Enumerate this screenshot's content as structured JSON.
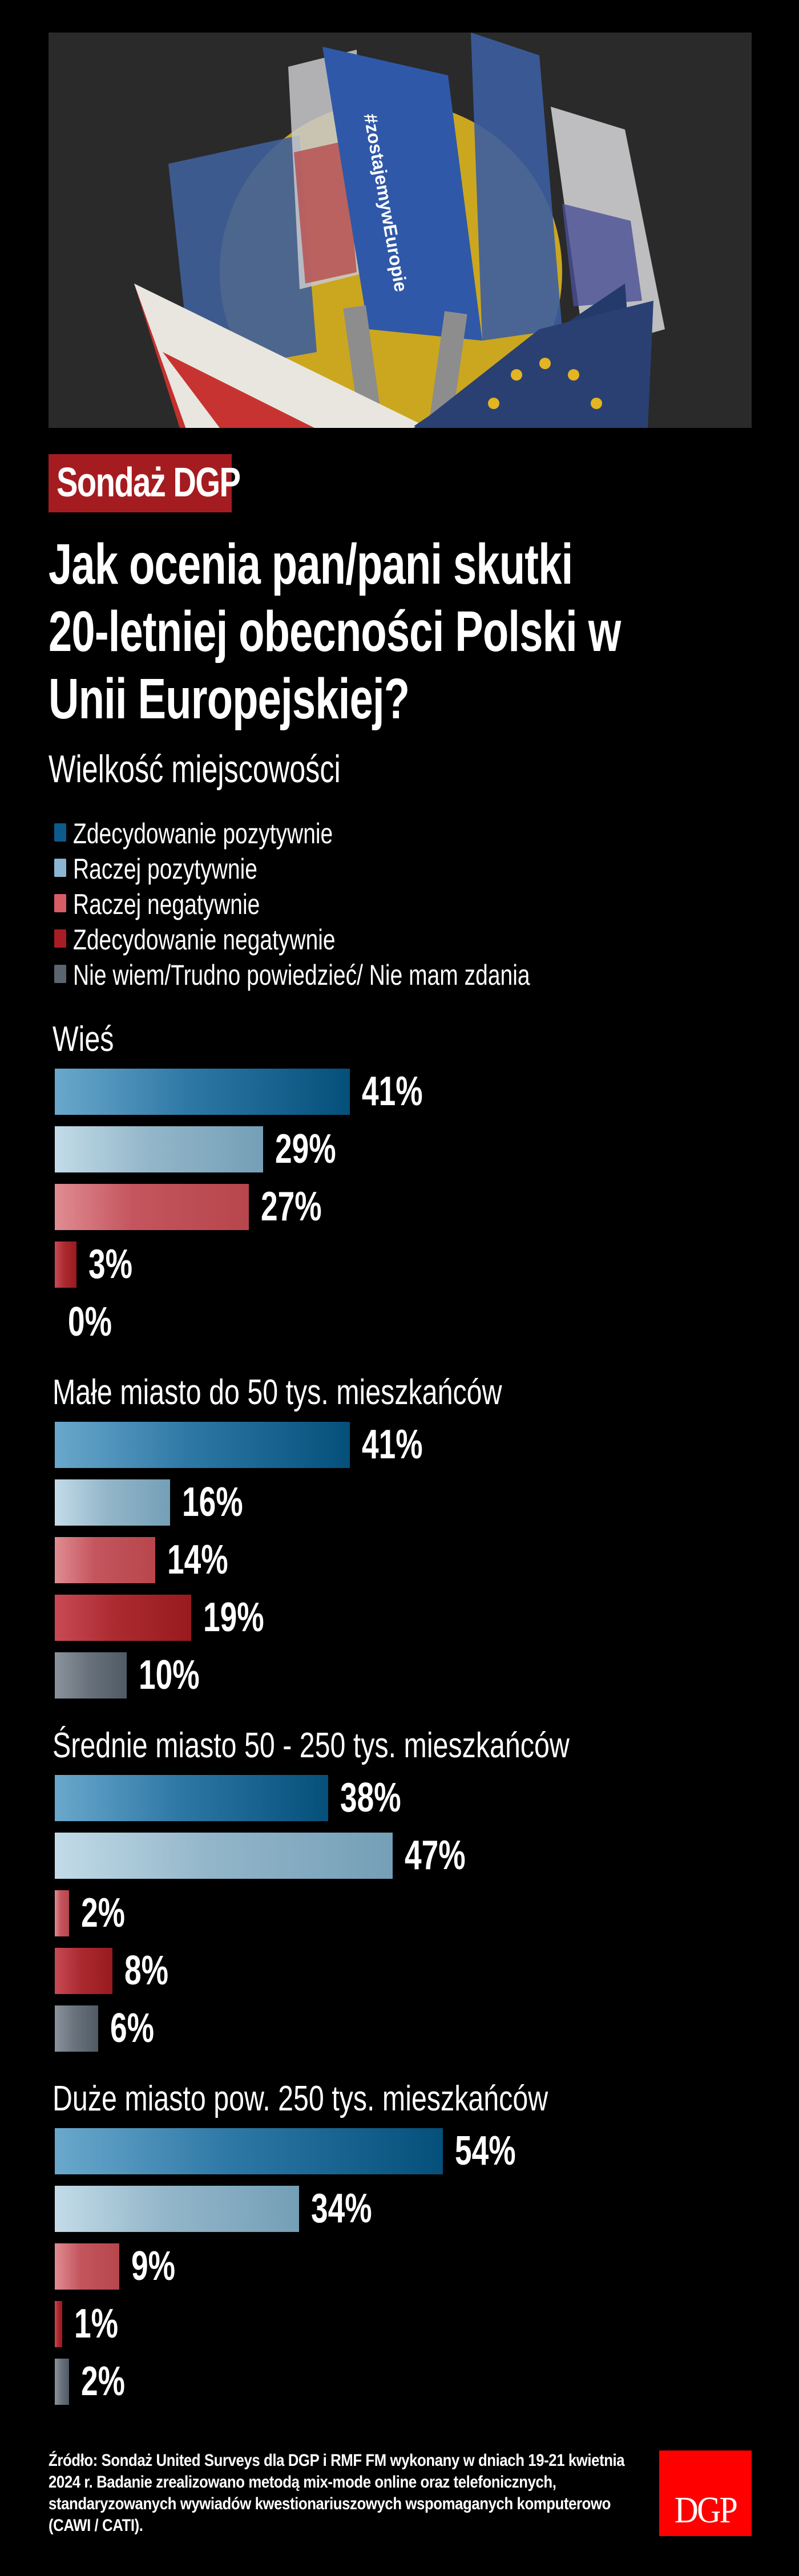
{
  "hero_image": {
    "description": "Collage: Polish and EU flags tied together, hands holding a #zostajemywEuropie sign, yellow circle background",
    "sign_text": "#zostajemywEuropie",
    "background_color": "#2a2a2a"
  },
  "badge": {
    "label": "Sondaż DGP",
    "color": "#a51c20"
  },
  "title": {
    "lines": [
      "Jak ocenia pan/pani skutki",
      "20-letniej obecności Polski w",
      "Unii Europejskiej?"
    ]
  },
  "subtitle": "Wielkość miejscowości",
  "legend": [
    {
      "label": "Zdecydowanie pozytywnie",
      "color": "#0d5a8c"
    },
    {
      "label": "Raczej pozytywnie",
      "color": "#8bb5d2"
    },
    {
      "label": "Raczej negatywnie",
      "color": "#d65c66"
    },
    {
      "label": "Zdecydowanie negatywnie",
      "color": "#a81c24"
    },
    {
      "label": "Nie wiem/Trudno powiedzieć/ Nie mam zdania",
      "color": "#5b6570"
    }
  ],
  "groups": [
    {
      "title": "Wieś",
      "labels": [
        "41%",
        "29%",
        "27%",
        "3%",
        "0%"
      ]
    },
    {
      "title": "Małe miasto do 50 tys. mieszkańców",
      "labels": [
        "41%",
        "16%",
        "14%",
        "19%",
        "10%"
      ]
    },
    {
      "title": "Średnie miasto 50 - 250 tys. mieszkańców",
      "labels": [
        "38%",
        "47%",
        "2%",
        "8%",
        "6%"
      ]
    },
    {
      "title": "Duże miasto pow. 250 tys. mieszkańców",
      "labels": [
        "54%",
        "34%",
        "9%",
        "1%",
        "2%"
      ]
    }
  ],
  "footer": {
    "source": "Źródło: Sondaż United Surveys dla DGP i RMF FM wykonany w dniach 19-21 kwietnia 2024 r. Badanie zrealizowano metodą mix-mode online oraz telefonicznych, standaryzowanych wywiadów kwestionariuszowych wspomaganych komputerowo (CAWI / CATI).",
    "source_lines": [
      "Źródło: Sondaż United Surveys dla DGP i RMF FM wykonany w dniach 19-21 kwietnia",
      "2024 r. Badanie zrealizowano metodą mix-mode online oraz telefonicznych,",
      "standaryzowanych wywiadów kwestionariuszowych wspomaganych komputerowo",
      "(CAWI / CATI)."
    ],
    "logo": {
      "text": "DGP",
      "color": "#ff0000"
    }
  },
  "chart_data": {
    "type": "bar",
    "orientation": "horizontal",
    "title": "Jak ocenia pan/pani skutki 20-letniej obecności Polski w Unii Europejskiej?",
    "subtitle": "Wielkość miejscowości",
    "xlabel": "",
    "ylabel": "",
    "unit": "%",
    "grid": false,
    "legend_position": "top",
    "categories": [
      "Wieś",
      "Małe miasto do 50 tys. mieszkańców",
      "Średnie miasto 50 - 250 tys. mieszkańców",
      "Duże miasto pow. 250 tys. mieszkańców"
    ],
    "series": [
      {
        "name": "Zdecydowanie pozytywnie",
        "color": "#0d5a8c",
        "values": [
          41,
          41,
          38,
          54
        ]
      },
      {
        "name": "Raczej pozytywnie",
        "color": "#8bb5d2",
        "values": [
          29,
          16,
          47,
          34
        ]
      },
      {
        "name": "Raczej negatywnie",
        "color": "#d65c66",
        "values": [
          27,
          14,
          2,
          9
        ]
      },
      {
        "name": "Zdecydowanie negatywnie",
        "color": "#a81c24",
        "values": [
          3,
          19,
          8,
          1
        ]
      },
      {
        "name": "Nie wiem/Trudno powiedzieć/ Nie mam zdania",
        "color": "#5b6570",
        "values": [
          0,
          10,
          6,
          2
        ]
      }
    ],
    "source": "Źródło: Sondaż United Surveys dla DGP i RMF FM wykonany w dniach 19-21 kwietnia 2024 r. Badanie zrealizowano metodą mix-mode online oraz telefonicznych, standaryzowanych wywiadów kwestionariuszowych wspomaganych komputerowo (CAWI / CATI)."
  }
}
